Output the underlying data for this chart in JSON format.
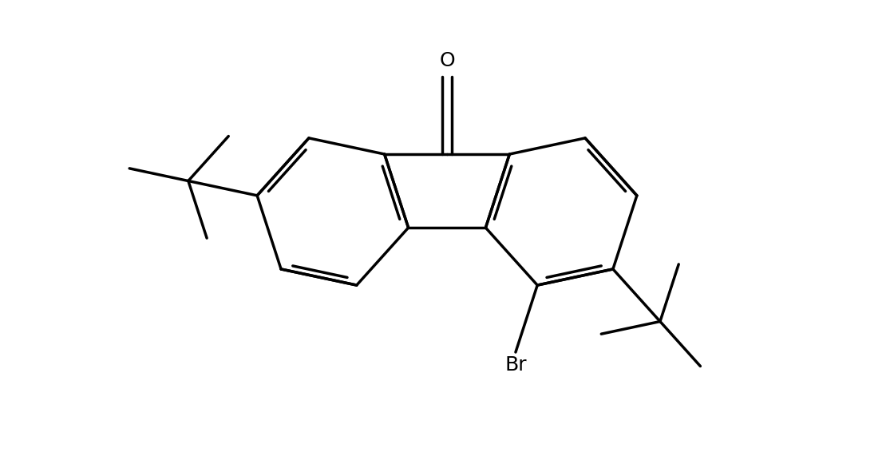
{
  "background_color": "#ffffff",
  "line_color": "#000000",
  "line_width": 2.5,
  "figsize": [
    11.2,
    5.81
  ],
  "dpi": 100,
  "label_Br": "Br",
  "label_O": "O",
  "font_size_labels": 18
}
